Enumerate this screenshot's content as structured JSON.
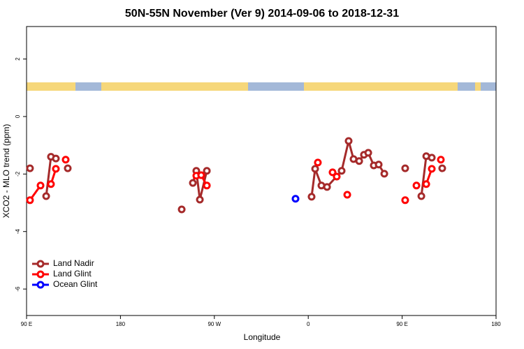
{
  "chart_data": {
    "type": "line",
    "title": "50N-55N November (Ver 9)   2014-09-06 to 2018-12-31",
    "xlabel": "Longitude",
    "ylabel": "XCO2 - MLO trend (ppm)",
    "xlim": [
      90,
      540
    ],
    "ylim": [
      -6.92,
      3.13
    ],
    "xticks": [
      {
        "value": 90,
        "label": "90 E"
      },
      {
        "value": 180,
        "label": "180"
      },
      {
        "value": 270,
        "label": "90 W"
      },
      {
        "value": 360,
        "label": "0"
      },
      {
        "value": 450,
        "label": "90 E"
      },
      {
        "value": 540,
        "label": "180"
      }
    ],
    "yticks": [
      2,
      0,
      -2,
      -4,
      -6
    ],
    "legend": "bottom-left",
    "series": [
      {
        "name": "Land Nadir",
        "color": "#a52a2a",
        "x": [
          93.3,
          null,
          108.8,
          113.4,
          118.1,
          null,
          129.5,
          null,
          238.7,
          null,
          249.4,
          252.7,
          256.1,
          262.8,
          null,
          363.2,
          366.6,
          372.6,
          378.0,
          392.0,
          398.7,
          403.4,
          408.8,
          413.4,
          417.5,
          422.8,
          427.5,
          432.9,
          null,
          452.9,
          null,
          468.4,
          473.1,
          478.4,
          null,
          488.4
        ],
        "values": [
          -1.8,
          null,
          -2.77,
          -1.4,
          -1.46,
          null,
          -1.8,
          null,
          -3.23,
          null,
          -2.31,
          -1.89,
          -2.89,
          -1.89,
          null,
          -2.79,
          -1.82,
          -2.4,
          -2.45,
          -1.89,
          -0.85,
          -1.48,
          -1.55,
          -1.33,
          -1.26,
          -1.7,
          -1.67,
          -1.99,
          null,
          -1.8,
          null,
          -2.77,
          -1.38,
          -1.43,
          null,
          -1.8
        ]
      },
      {
        "name": "Land Glint",
        "color": "#ff0000",
        "x": [
          93.3,
          103.4,
          null,
          113.4,
          118.1,
          null,
          127.5,
          null,
          252.7,
          257.4,
          262.8,
          null,
          369.2,
          null,
          383.3,
          387.3,
          null,
          397.4,
          null,
          452.9,
          null,
          463.7,
          null,
          473.1,
          478.4,
          null,
          487.1
        ],
        "values": [
          -2.91,
          -2.4,
          null,
          -2.35,
          -1.82,
          null,
          -1.5,
          null,
          -2.06,
          -2.04,
          -2.4,
          null,
          -1.6,
          null,
          -1.94,
          -2.09,
          null,
          -2.72,
          null,
          -2.91,
          null,
          -2.4,
          null,
          -2.35,
          -1.82,
          null,
          -1.5
        ]
      },
      {
        "name": "Ocean Glint",
        "color": "#0000ff",
        "x": [
          347.8
        ],
        "values": [
          -2.86
        ]
      }
    ]
  }
}
